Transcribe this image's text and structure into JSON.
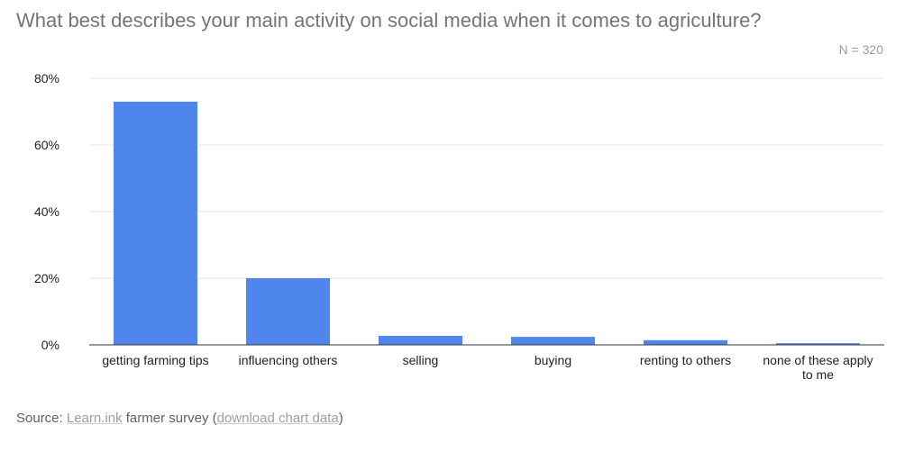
{
  "chart_data": {
    "type": "bar",
    "title": "What best describes your main activity on social media when it comes to agriculture?",
    "subtitle": "N = 320",
    "categories": [
      [
        "getting farming tips"
      ],
      [
        "influencing others"
      ],
      [
        "selling"
      ],
      [
        "buying"
      ],
      [
        "renting to others"
      ],
      [
        "none of these apply",
        "to me"
      ]
    ],
    "values": [
      73,
      20,
      2.7,
      2.4,
      1.4,
      0.5
    ],
    "unit": "%",
    "ylim": [
      0,
      80
    ],
    "yticks": [
      "0%",
      "20%",
      "40%",
      "60%",
      "80%"
    ],
    "ytick_values": [
      0,
      20,
      40,
      60,
      80
    ],
    "grid": true,
    "legend": "none",
    "bar_color": "#4f86ec"
  },
  "footer": {
    "prefix": "Source: ",
    "link1": "Learn.ink",
    "middle": " farmer survey (",
    "link2": "download chart data",
    "suffix": ")"
  }
}
